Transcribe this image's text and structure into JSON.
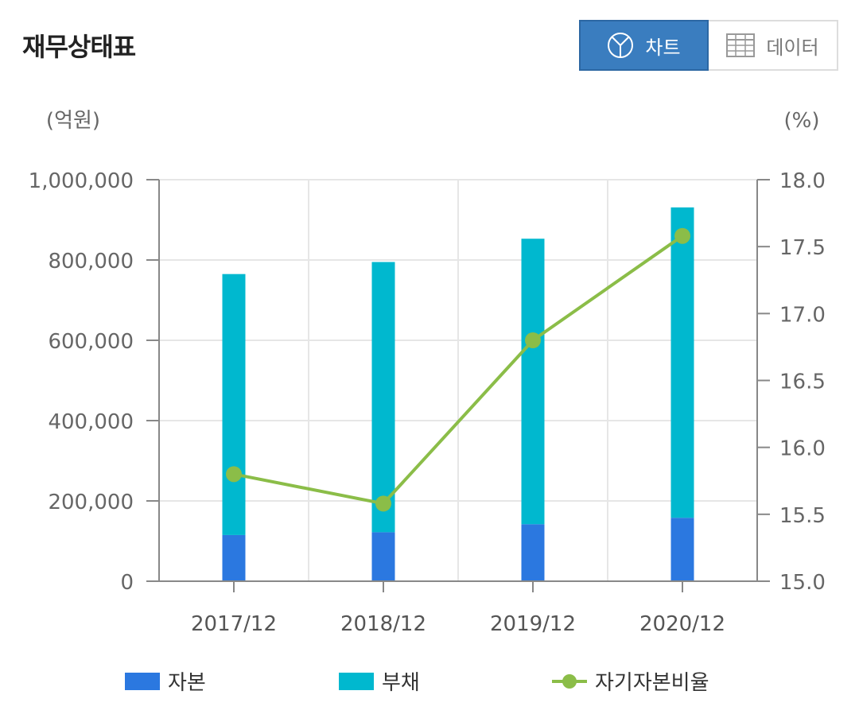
{
  "header": {
    "title": "재무상태표"
  },
  "toggle": {
    "chart_label": "차트",
    "data_label": "데이터"
  },
  "colors": {
    "equity": "#2b78e0",
    "liability": "#00b8cf",
    "ratio": "#8bbd48"
  },
  "chart_data": {
    "type": "bar",
    "categories": [
      "2017/12",
      "2018/12",
      "2019/12",
      "2020/12"
    ],
    "series": [
      {
        "name": "자본",
        "type": "bar",
        "stack": "total",
        "axis": "left",
        "values": [
          115000,
          122000,
          142000,
          158000
        ]
      },
      {
        "name": "부채",
        "type": "bar",
        "stack": "total",
        "axis": "left",
        "values": [
          650000,
          673000,
          711000,
          773000
        ]
      },
      {
        "name": "자기자본비율",
        "type": "line",
        "axis": "right",
        "values": [
          15.8,
          15.58,
          16.8,
          17.58
        ]
      }
    ],
    "left_axis": {
      "unit": "(억원)",
      "range": [
        0,
        1000000
      ],
      "ticks": [
        0,
        200000,
        400000,
        600000,
        800000,
        1000000
      ],
      "tick_labels": [
        "0",
        "200,000",
        "400,000",
        "600,000",
        "800,000",
        "1,000,000"
      ]
    },
    "right_axis": {
      "unit": "(%)",
      "range": [
        15.0,
        18.0
      ],
      "ticks": [
        15.0,
        15.5,
        16.0,
        16.5,
        17.0,
        17.5,
        18.0
      ],
      "tick_labels": [
        "15.0",
        "15.5",
        "16.0",
        "16.5",
        "17.0",
        "17.5",
        "18.0"
      ]
    },
    "grid": true,
    "legend_position": "bottom"
  }
}
